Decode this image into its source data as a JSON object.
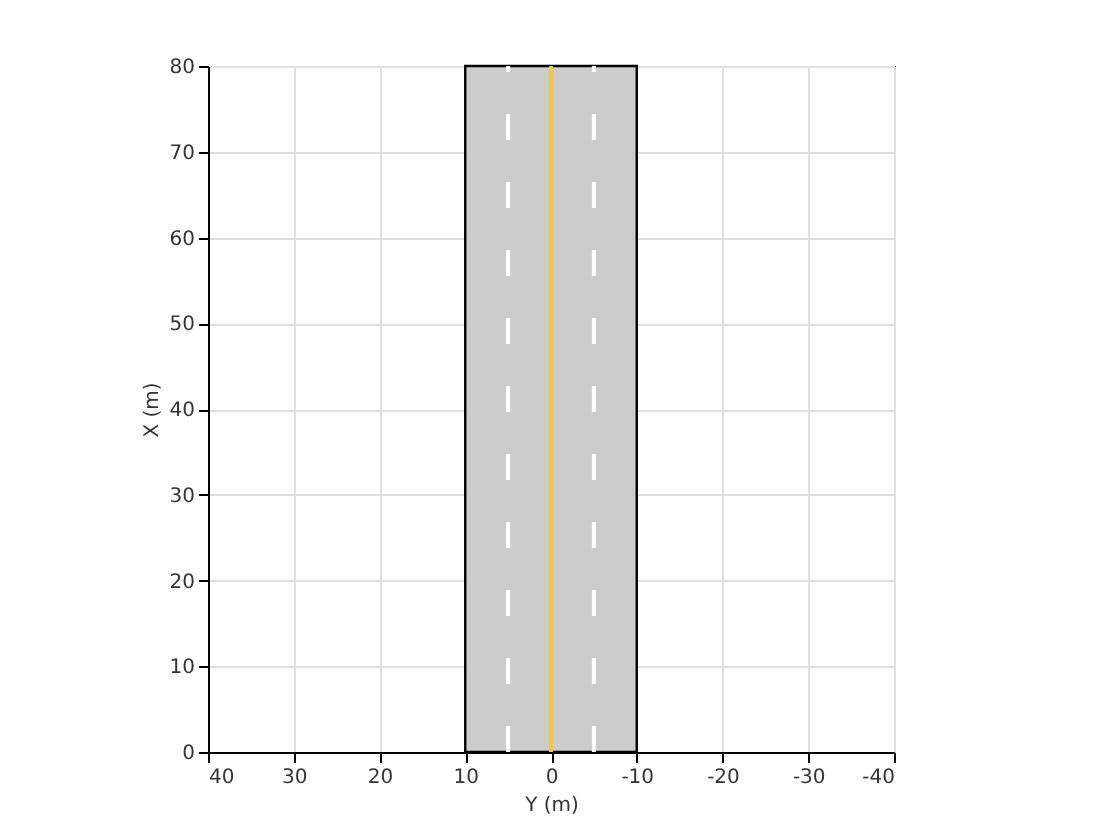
{
  "chart_data": {
    "type": "line",
    "xlabel": "Y (m)",
    "ylabel": "X (m)",
    "xlim": [
      40,
      -40
    ],
    "ylim": [
      0,
      80
    ],
    "xticks": [
      40,
      30,
      20,
      10,
      0,
      -10,
      -20,
      -30,
      -40
    ],
    "yticks": [
      0,
      10,
      20,
      30,
      40,
      50,
      60,
      70,
      80
    ],
    "grid": true,
    "marker": "none",
    "bands": [
      {
        "axis": "x",
        "from": 10,
        "to": -10,
        "color": "#cccccc"
      }
    ],
    "series": [
      {
        "color": "#f5c842",
        "line_style": "solid",
        "x": [
          0,
          0
        ],
        "values": [
          0,
          80
        ]
      },
      {
        "color": "#ffffff",
        "line_style": "dashed",
        "x": [
          5,
          5
        ],
        "values": [
          0,
          80
        ]
      },
      {
        "color": "#ffffff",
        "line_style": "dashed",
        "x": [
          -5,
          -5
        ],
        "values": [
          0,
          80
        ]
      }
    ]
  }
}
